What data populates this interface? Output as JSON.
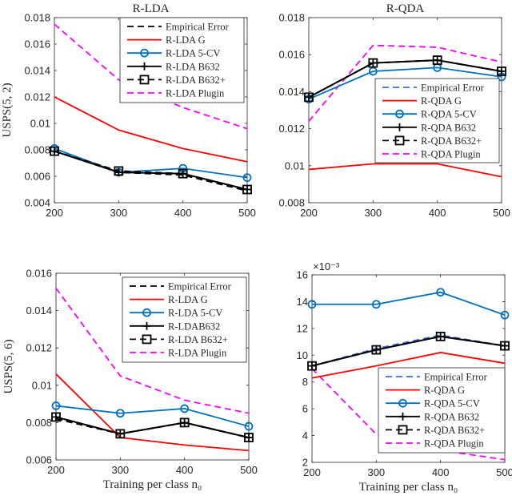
{
  "chart_data": [
    {
      "type": "line",
      "title": "R-LDA",
      "xlabel": "",
      "ylabel": "USPS(5, 2)",
      "x": [
        200,
        300,
        400,
        500
      ],
      "xlim": [
        200,
        500
      ],
      "ylim": [
        0.004,
        0.018
      ],
      "yticks": [
        0.004,
        0.006,
        0.008,
        0.01,
        0.012,
        0.014,
        0.016,
        0.018
      ],
      "ytick_labels": [
        "0.004",
        "0.006",
        "0.008",
        "0.01",
        "0.012",
        "0.014",
        "0.016",
        "0.018"
      ],
      "xtick_labels": [
        "200",
        "300",
        "400",
        "500"
      ],
      "legend": "top-right",
      "series": [
        {
          "name": "Empirical Error",
          "style": "dashed",
          "color": "#000000",
          "marker": "none",
          "values": [
            0.0079,
            0.0063,
            0.0061,
            0.0049
          ]
        },
        {
          "name": "R-LDA G",
          "style": "solid",
          "color": "#ff0000",
          "marker": "none",
          "values": [
            0.012,
            0.0095,
            0.0081,
            0.0071
          ]
        },
        {
          "name": "R-LDA 5-CV",
          "style": "solid",
          "color": "#0072bd",
          "marker": "circle",
          "values": [
            0.0081,
            0.0063,
            0.0066,
            0.0059
          ]
        },
        {
          "name": "R-LDA B632",
          "style": "solid",
          "color": "#000000",
          "marker": "plus",
          "values": [
            0.0079,
            0.0063,
            0.0062,
            0.005
          ]
        },
        {
          "name": "R-LDA B632+",
          "style": "dashed",
          "color": "#000000",
          "marker": "square",
          "values": [
            0.0079,
            0.0064,
            0.0062,
            0.005
          ]
        },
        {
          "name": "R-LDA Plugin",
          "style": "dashed",
          "color": "#ff00ff",
          "marker": "none",
          "values": [
            0.0175,
            0.0133,
            0.0112,
            0.0096
          ]
        }
      ]
    },
    {
      "type": "line",
      "title": "R-QDA",
      "xlabel": "",
      "ylabel": "",
      "x": [
        200,
        300,
        400,
        500
      ],
      "xlim": [
        200,
        500
      ],
      "ylim": [
        0.008,
        0.018
      ],
      "yticks": [
        0.008,
        0.01,
        0.012,
        0.014,
        0.016,
        0.018
      ],
      "ytick_labels": [
        "0.008",
        "0.01",
        "0.012",
        "0.014",
        "0.016",
        "0.018"
      ],
      "xtick_labels": [
        "200",
        "300",
        "400",
        "500"
      ],
      "legend": "center-right",
      "series": [
        {
          "name": "Empirical Error",
          "style": "dashed",
          "color": "#3b6fe0",
          "marker": "none",
          "values": [
            0.0137,
            0.01555,
            0.0157,
            0.0151
          ]
        },
        {
          "name": "R-QDA G",
          "style": "solid",
          "color": "#ff0000",
          "marker": "none",
          "values": [
            0.0098,
            0.0101,
            0.0101,
            0.0094
          ]
        },
        {
          "name": "R-QDA 5-CV",
          "style": "solid",
          "color": "#0072bd",
          "marker": "circle",
          "values": [
            0.0136,
            0.0151,
            0.0153,
            0.0148
          ]
        },
        {
          "name": "R-QDA B632",
          "style": "solid",
          "color": "#000000",
          "marker": "plus",
          "values": [
            0.0137,
            0.01555,
            0.0157,
            0.0151
          ]
        },
        {
          "name": "R-QDA B632+",
          "style": "dashed",
          "color": "#000000",
          "marker": "square",
          "values": [
            0.0137,
            0.01555,
            0.0157,
            0.0151
          ]
        },
        {
          "name": "R-QDA Plugin",
          "style": "dashed",
          "color": "#ff00ff",
          "marker": "none",
          "values": [
            0.0124,
            0.0165,
            0.0164,
            0.0156
          ]
        }
      ]
    },
    {
      "type": "line",
      "title": "",
      "xlabel": "Training per class n₀",
      "ylabel": "USPS(5, 6)",
      "x": [
        200,
        300,
        400,
        500
      ],
      "xlim": [
        200,
        500
      ],
      "ylim": [
        0.006,
        0.016
      ],
      "yticks": [
        0.006,
        0.008,
        0.01,
        0.012,
        0.014,
        0.016
      ],
      "ytick_labels": [
        "0.006",
        "0.008",
        "0.01",
        "0.012",
        "0.014",
        "0.016"
      ],
      "xtick_labels": [
        "200",
        "300",
        "400",
        "500"
      ],
      "legend": "top-right",
      "series": [
        {
          "name": "Empirical Error",
          "style": "dashed",
          "color": "#000000",
          "marker": "none",
          "values": [
            0.0082,
            0.0074,
            0.008,
            0.0072
          ]
        },
        {
          "name": "R-LDA G",
          "style": "solid",
          "color": "#ff0000",
          "marker": "none",
          "values": [
            0.0106,
            0.0072,
            0.0068,
            0.0065
          ]
        },
        {
          "name": "R-LDA 5-CV",
          "style": "solid",
          "color": "#0072bd",
          "marker": "circle",
          "values": [
            0.0089,
            0.0085,
            0.00875,
            0.0078
          ]
        },
        {
          "name": "R-LDAB632",
          "style": "solid",
          "color": "#000000",
          "marker": "plus",
          "values": [
            0.0083,
            0.0074,
            0.008,
            0.0072
          ]
        },
        {
          "name": "R-LDA B632+",
          "style": "dashed",
          "color": "#000000",
          "marker": "square",
          "values": [
            0.0083,
            0.0074,
            0.008,
            0.0072
          ]
        },
        {
          "name": "R-LDA Plugin",
          "style": "dashed",
          "color": "#ff00ff",
          "marker": "none",
          "values": [
            0.0152,
            0.0105,
            0.0092,
            0.0085
          ]
        }
      ]
    },
    {
      "type": "line",
      "title": "",
      "xlabel": "Training per class n₀",
      "ylabel": "",
      "y_multiplier": "×10⁻³",
      "x": [
        200,
        300,
        400,
        500
      ],
      "xlim": [
        200,
        500
      ],
      "ylim": [
        2,
        16
      ],
      "yticks": [
        2,
        4,
        6,
        8,
        10,
        12,
        14,
        16
      ],
      "ytick_labels": [
        "2",
        "4",
        "6",
        "8",
        "10",
        "12",
        "14",
        "16"
      ],
      "xtick_labels": [
        "200",
        "300",
        "400",
        "500"
      ],
      "legend": "bottom-right",
      "series": [
        {
          "name": "Empirical Error",
          "style": "dashed",
          "color": "#3b6fe0",
          "marker": "none",
          "values": [
            9.2,
            10.5,
            11.5,
            10.7
          ]
        },
        {
          "name": "R-QDA G",
          "style": "solid",
          "color": "#ff0000",
          "marker": "none",
          "values": [
            8.3,
            9.2,
            10.2,
            9.4
          ]
        },
        {
          "name": "R-QDA 5-CV",
          "style": "solid",
          "color": "#0072bd",
          "marker": "circle",
          "values": [
            13.8,
            13.8,
            14.7,
            13.0
          ]
        },
        {
          "name": "R-QDA B632",
          "style": "solid",
          "color": "#000000",
          "marker": "plus",
          "values": [
            9.2,
            10.4,
            11.4,
            10.7
          ]
        },
        {
          "name": "R-QDA B632+",
          "style": "dashed",
          "color": "#000000",
          "marker": "square",
          "values": [
            9.2,
            10.4,
            11.4,
            10.7
          ]
        },
        {
          "name": "R-QDA Plugin",
          "style": "dashed",
          "color": "#ff00ff",
          "marker": "none",
          "values": [
            9.0,
            4.1,
            2.9,
            2.2
          ]
        }
      ]
    }
  ]
}
